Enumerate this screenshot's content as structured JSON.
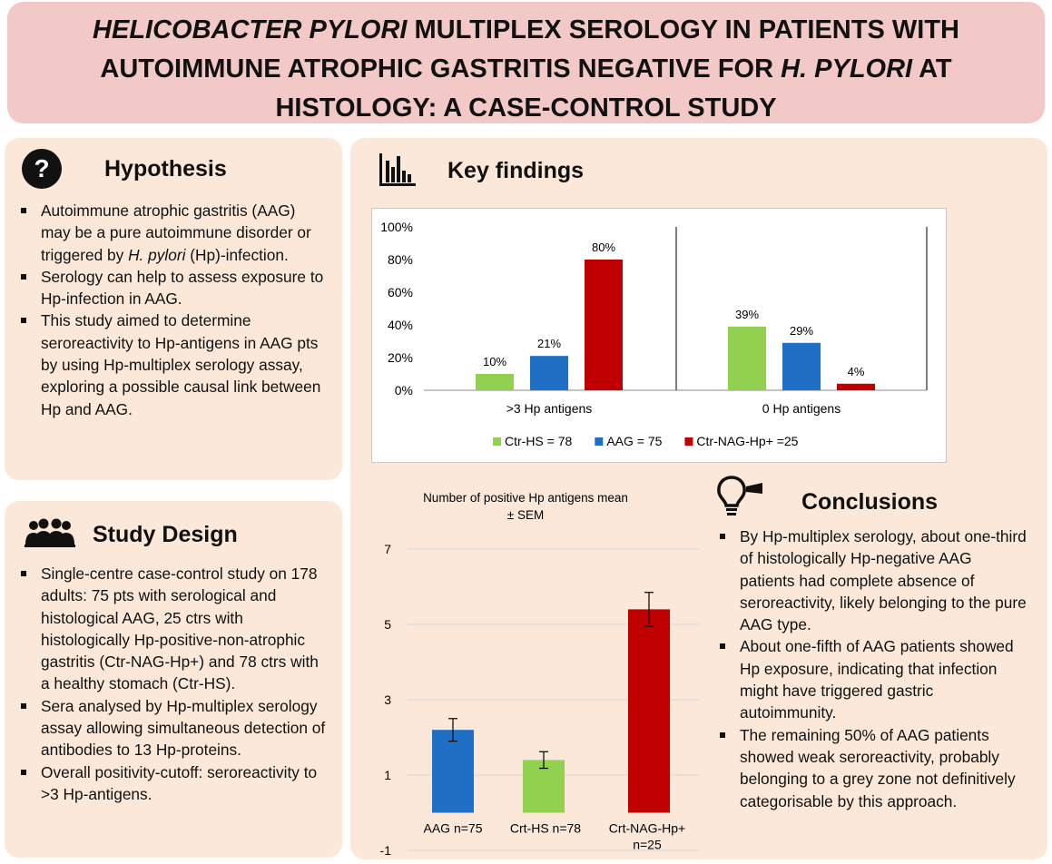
{
  "title": {
    "line1_italic": "HELICOBACTER PYLORI",
    "line1_rest": " MULTIPLEX SEROLOGY IN PATIENTS WITH",
    "line2_rest": "AUTOIMMUNE ATROPHIC GASTRITIS NEGATIVE FOR ",
    "line2_italic": "H. PYLORI",
    "line2_end": " AT",
    "line3": "HISTOLOGY: A CASE-CONTROL STUDY"
  },
  "hypothesis": {
    "heading": "Hypothesis",
    "icon": "question-icon",
    "b1_part1": "Autoimmune atrophic gastritis (AAG) may be a pure autoimmune disorder or triggered by ",
    "b1_italic": "H. pylori",
    "b1_part2": " (Hp)-infection.",
    "b2": "Serology can help to assess exposure to Hp-infection in AAG.",
    "b3": "This study aimed to determine seroreactivity to Hp-antigens in AAG pts by using Hp-multiplex serology assay, exploring a possible causal link between Hp and AAG."
  },
  "design": {
    "heading": "Study Design",
    "icon": "people-group-icon",
    "bullets": [
      "Single-centre case-control study on 178 adults: 75 pts with serological and histological AAG, 25 ctrs with histologically Hp-positive-non-atrophic gastritis (Ctr-NAG-Hp+) and 78 ctrs with a healthy stomach (Ctr-HS).",
      "Sera analysed by Hp-multiplex serology assay allowing simultaneous detection of antibodies to 13 Hp-proteins.",
      "Overall positivity-cutoff: seroreactivity to >3 Hp-antigens."
    ]
  },
  "findings": {
    "heading": "Key findings",
    "icon": "bar-chart-icon"
  },
  "conclusions": {
    "heading": "Conclusions",
    "icon": "lightbulb-icon",
    "bullets": [
      "By Hp-multiplex serology, about one-third of histologically Hp-negative AAG patients had complete absence of seroreactivity, likely belonging to the pure AAG type.",
      "About one-fifth of AAG patients showed Hp exposure, indicating that infection might have triggered gastric autoimmunity.",
      "The remaining 50% of AAG patients showed weak seroreactivity, probably belonging to a grey zone not definitively categorisable by this approach."
    ]
  },
  "chart_data": [
    {
      "type": "bar",
      "categories": [
        ">3 Hp antigens",
        "0 Hp antigens"
      ],
      "series": [
        {
          "name": "Ctr-HS = 78",
          "values": [
            10,
            39
          ],
          "labels": [
            "10%",
            "39%"
          ],
          "color": "#92d050"
        },
        {
          "name": "AAG = 75",
          "values": [
            21,
            29
          ],
          "labels": [
            "21%",
            "29%"
          ],
          "color": "#1f6fc5"
        },
        {
          "name": "Ctr-NAG-Hp+ =25",
          "values": [
            80,
            4
          ],
          "labels": [
            "80%",
            "4%"
          ],
          "color": "#c00000"
        }
      ],
      "ylim": [
        0,
        100
      ],
      "yticks": [
        "0%",
        "20%",
        "40%",
        "60%",
        "80%",
        "100%"
      ],
      "legend_position": "bottom",
      "grid": false
    },
    {
      "type": "bar",
      "title": "Number of positive Hp antigens mean ± SEM",
      "categories": [
        "AAG n=75",
        "Crt-HS n=78",
        "Crt-NAG-Hp+ n=25"
      ],
      "values": [
        2.2,
        1.4,
        5.4
      ],
      "errors": [
        0.3,
        0.22,
        0.45
      ],
      "colors": [
        "#1f6fc5",
        "#92d050",
        "#c00000"
      ],
      "ylim": [
        -1,
        7
      ],
      "yticks": [
        "7",
        "5",
        "3",
        "1",
        "-1"
      ],
      "grid": true
    }
  ]
}
